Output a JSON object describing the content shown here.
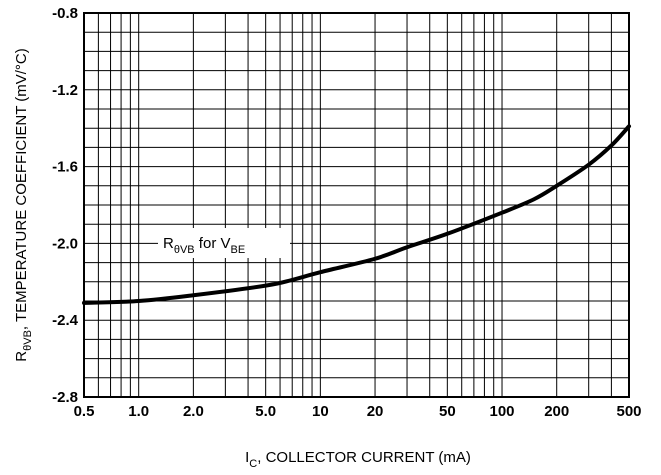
{
  "chart_data": {
    "type": "line",
    "x_scale": "log",
    "xlim": [
      0.5,
      500
    ],
    "ylim": [
      -2.8,
      -0.8
    ],
    "grid": true,
    "x_ticks": [
      "0.5",
      "1.0",
      "2.0",
      "5.0",
      "10",
      "20",
      "50",
      "100",
      "200",
      "500"
    ],
    "y_ticks": [
      "-0.8",
      "-1.2",
      "-1.6",
      "-2.0",
      "-2.4",
      "-2.8"
    ],
    "xlabel": {
      "main": "I",
      "sub": "C",
      "rest": ", COLLECTOR CURRENT (mA)"
    },
    "ylabel": {
      "main": "R",
      "sub": "θVB",
      "rest": ", TEMPERATURE COEFFICIENT (mV/°C)"
    },
    "series": [
      {
        "label": {
          "main": "R",
          "sub": "θVB",
          "mid": " for V",
          "sub2": "BE"
        },
        "x": [
          0.5,
          1.0,
          2.0,
          5.0,
          7.0,
          10,
          20,
          30,
          50,
          100,
          150,
          200,
          300,
          400,
          500
        ],
        "y": [
          -2.31,
          -2.3,
          -2.27,
          -2.22,
          -2.19,
          -2.15,
          -2.08,
          -2.02,
          -1.95,
          -1.84,
          -1.77,
          -1.7,
          -1.59,
          -1.49,
          -1.39
        ]
      }
    ]
  }
}
